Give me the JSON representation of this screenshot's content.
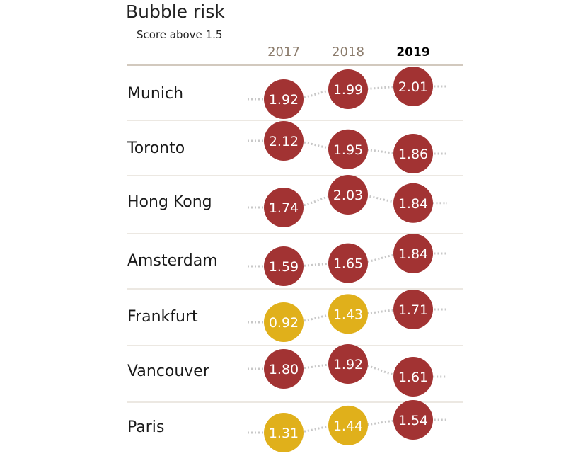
{
  "chart_data": {
    "type": "table",
    "title": "Bubble risk",
    "subtitle": "Score above 1.5",
    "years": [
      "2017",
      "2018",
      "2019"
    ],
    "threshold": 1.5,
    "colors": {
      "above_threshold": "#a23333",
      "below_threshold": "#e0b01b",
      "connector": "#c8c8c8",
      "rule": "#d9d0c4",
      "year_label": "#8a7a6a",
      "current_year_label": "#000000"
    },
    "rows": [
      {
        "city": "Munich",
        "values": [
          "1.92",
          "1.99",
          "2.01"
        ]
      },
      {
        "city": "Toronto",
        "values": [
          "2.12",
          "1.95",
          "1.86"
        ]
      },
      {
        "city": "Hong Kong",
        "values": [
          "1.74",
          "2.03",
          "1.84"
        ]
      },
      {
        "city": "Amsterdam",
        "values": [
          "1.59",
          "1.65",
          "1.84"
        ]
      },
      {
        "city": "Frankfurt",
        "values": [
          "0.92",
          "1.43",
          "1.71"
        ]
      },
      {
        "city": "Vancouver",
        "values": [
          "1.80",
          "1.92",
          "1.61"
        ]
      },
      {
        "city": "Paris",
        "values": [
          "1.31",
          "1.44",
          "1.54"
        ]
      }
    ]
  }
}
